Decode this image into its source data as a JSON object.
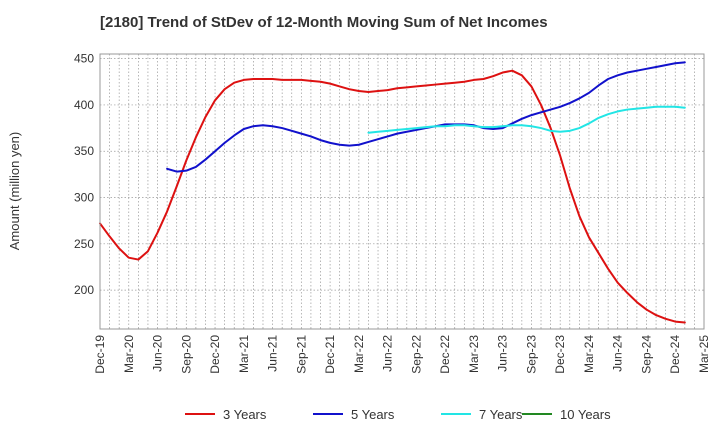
{
  "chart_data": {
    "type": "line",
    "title": "[2180]  Trend of StDev of 12-Month Moving Sum of Net Incomes",
    "ylabel": "Amount (million yen)",
    "xlabel": "",
    "ylim": [
      158,
      455
    ],
    "yticks": [
      200,
      250,
      300,
      350,
      400,
      450
    ],
    "x_ticks": [
      "Dec-19",
      "Mar-20",
      "Jun-20",
      "Sep-20",
      "Dec-20",
      "Mar-21",
      "Jun-21",
      "Sep-21",
      "Dec-21",
      "Mar-22",
      "Jun-22",
      "Sep-22",
      "Dec-22",
      "Mar-23",
      "Jun-23",
      "Sep-23",
      "Dec-23",
      "Mar-24",
      "Jun-24",
      "Sep-24",
      "Dec-24",
      "Mar-25"
    ],
    "grid": true,
    "legend_position": "bottom",
    "series": [
      {
        "name": "3 Years",
        "color": "#dd1111",
        "values": [
          272,
          258,
          245,
          235,
          233,
          242,
          262,
          285,
          312,
          340,
          365,
          387,
          405,
          417,
          424,
          427,
          428,
          428,
          428,
          427,
          427,
          427,
          426,
          425,
          423,
          420,
          417,
          415,
          414,
          415,
          416,
          418,
          419,
          420,
          421,
          422,
          423,
          424,
          425,
          427,
          428,
          431,
          435,
          437,
          432,
          420,
          400,
          375,
          345,
          310,
          280,
          257,
          240,
          223,
          208,
          197,
          187,
          179,
          173,
          169,
          166,
          165
        ],
        "start_index": 0
      },
      {
        "name": "5 Years",
        "color": "#1111cc",
        "values": [
          331,
          328,
          329,
          333,
          341,
          350,
          359,
          367,
          374,
          377,
          378,
          377,
          375,
          372,
          369,
          366,
          362,
          359,
          357,
          356,
          357,
          360,
          363,
          366,
          369,
          371,
          373,
          375,
          377,
          379,
          379,
          379,
          378,
          375,
          374,
          375,
          380,
          385,
          389,
          392,
          395,
          398,
          402,
          407,
          413,
          421,
          428,
          432,
          435,
          437,
          439,
          441,
          443,
          445,
          446
        ],
        "start_index": 7
      },
      {
        "name": "7 Years",
        "color": "#22e5e5",
        "values": [
          370,
          371,
          372,
          373,
          374,
          375,
          376,
          377,
          377,
          378,
          378,
          377,
          376,
          376,
          377,
          378,
          378,
          377,
          375,
          372,
          371,
          372,
          375,
          380,
          386,
          390,
          393,
          395,
          396,
          397,
          398,
          398,
          398,
          397
        ],
        "start_index": 28
      },
      {
        "name": "10 Years",
        "color": "#228822",
        "values": [],
        "start_index": 0
      }
    ]
  }
}
